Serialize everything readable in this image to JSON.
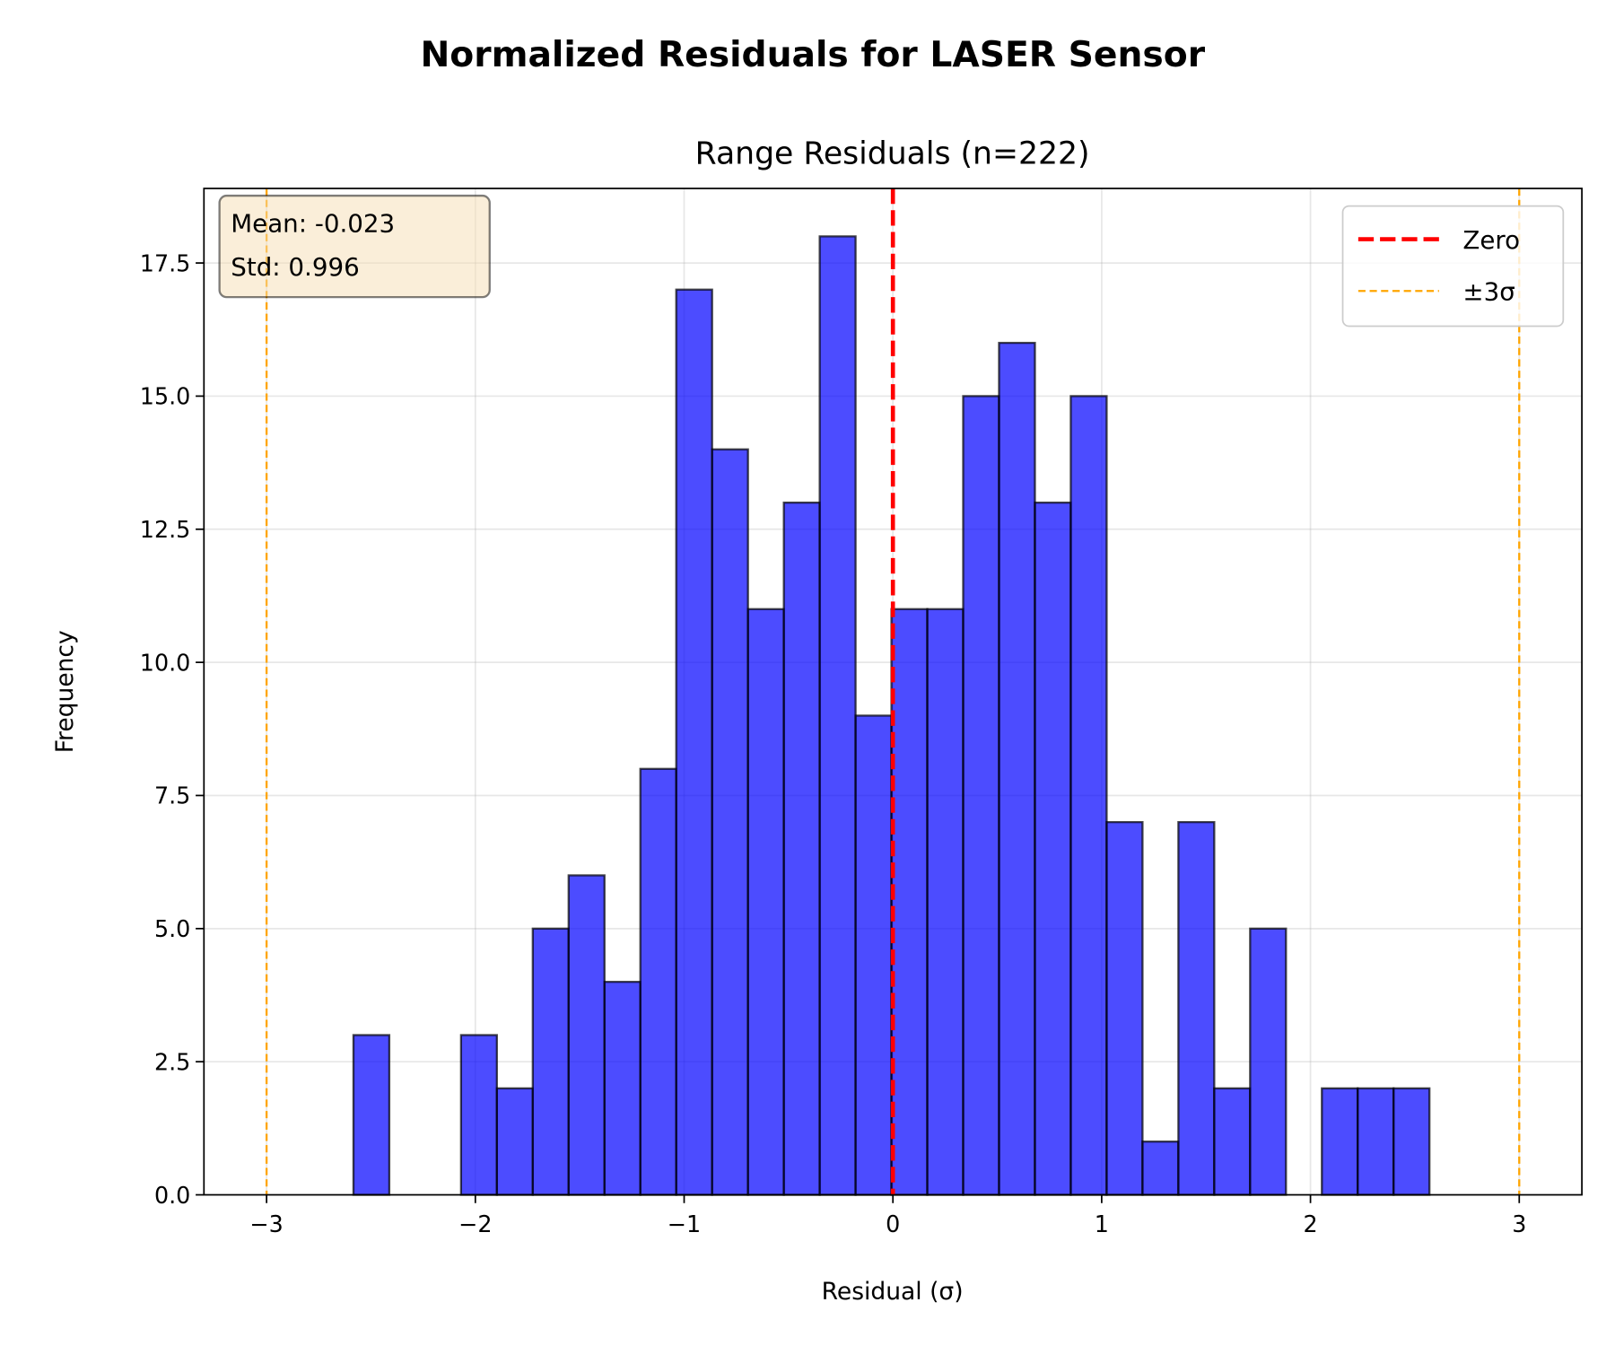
{
  "figure_title": "Normalized Residuals for LASER Sensor",
  "chart_data": {
    "type": "bar",
    "subtype": "histogram",
    "title": "Range Residuals (n=222)",
    "xlabel": "Residual (σ)",
    "ylabel": "Frequency",
    "xlim": [
      -3.3,
      3.3
    ],
    "ylim": [
      0,
      18.9
    ],
    "bin_range": [
      -2.584,
      2.57
    ],
    "bins": 30,
    "counts": [
      3,
      0,
      0,
      3,
      2,
      5,
      6,
      4,
      8,
      17,
      14,
      11,
      13,
      18,
      9,
      11,
      11,
      15,
      16,
      13,
      15,
      7,
      1,
      7,
      2,
      5,
      0,
      2,
      2,
      2
    ],
    "xticks": [
      "−3",
      "−2",
      "−1",
      "0",
      "1",
      "2",
      "3"
    ],
    "xtick_values": [
      -3,
      -2,
      -1,
      0,
      1,
      2,
      3
    ],
    "yticks": [
      "0.0",
      "2.5",
      "5.0",
      "7.5",
      "10.0",
      "12.5",
      "15.0",
      "17.5"
    ],
    "ytick_values": [
      0,
      2.5,
      5,
      7.5,
      10,
      12.5,
      15,
      17.5
    ],
    "grid": true,
    "bar_color": "#0000ff",
    "bar_alpha": 0.7,
    "vlines": [
      {
        "name": "Zero",
        "x": 0,
        "color": "#ff0000",
        "style": "dashed"
      },
      {
        "name": "±3σ",
        "x": -3,
        "color": "#ffa500",
        "style": "dashed"
      },
      {
        "name": "",
        "x": 3,
        "color": "#ffa500",
        "style": "dashed"
      }
    ],
    "legend": {
      "placement": "top-right",
      "entries": [
        "Zero",
        "±3σ"
      ]
    },
    "stats_box": {
      "mean": "Mean: -0.023",
      "std": "Std: 0.996",
      "placement": "top-left"
    }
  }
}
